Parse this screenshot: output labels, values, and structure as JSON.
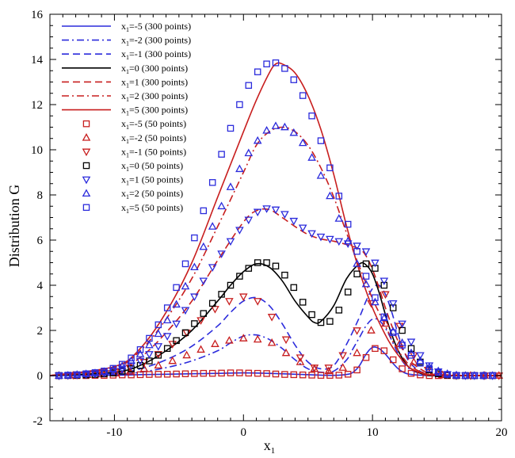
{
  "chart_data": {
    "type": "line",
    "title": "",
    "xlabel": "x",
    "xlabel_sub": "1",
    "ylabel": "Distribution G",
    "xlim": [
      -15,
      20
    ],
    "ylim": [
      -2,
      16
    ],
    "xticks": [
      -10,
      0,
      10,
      20
    ],
    "yticks": [
      -2,
      0,
      2,
      4,
      6,
      8,
      10,
      12,
      14,
      16
    ],
    "xtick_labels": [
      "-10",
      "0",
      "10",
      "20"
    ],
    "ytick_labels": [
      "-2",
      "0",
      "2",
      "4",
      "6",
      "8",
      "10",
      "12",
      "14",
      "16"
    ],
    "grid": false,
    "legend_position": "top-left",
    "series": [
      {
        "name": "x1=-5 (300 points)",
        "kind": "line",
        "color": "#2b2bdc",
        "dash": "solid",
        "x": [
          -15,
          -10,
          -8,
          -6,
          -4,
          -2,
          0,
          2,
          4,
          6,
          7,
          8,
          8.5,
          9,
          9.5,
          10,
          10.5,
          11,
          11.5,
          12,
          12.5,
          13,
          14,
          15,
          20
        ],
        "y": [
          0,
          0.02,
          0.04,
          0.06,
          0.08,
          0.1,
          0.12,
          0.1,
          0.06,
          0.02,
          0.01,
          0.05,
          0.15,
          0.45,
          0.95,
          1.25,
          1.2,
          0.95,
          0.6,
          0.3,
          0.12,
          0.05,
          0.01,
          0,
          0
        ]
      },
      {
        "name": "x1=-2 (300 points)",
        "kind": "line",
        "color": "#2b2bdc",
        "dash": "dashdot",
        "x": [
          -15,
          -10,
          -8,
          -6,
          -4,
          -2,
          -1,
          0,
          1,
          2,
          3,
          4,
          5,
          6,
          7,
          8,
          8.5,
          9,
          9.5,
          10,
          10.5,
          11,
          11.5,
          12,
          12.5,
          13,
          14,
          15,
          20
        ],
        "y": [
          0,
          0.05,
          0.15,
          0.35,
          0.65,
          1.1,
          1.45,
          1.75,
          1.8,
          1.6,
          1.2,
          0.7,
          0.3,
          0.15,
          0.2,
          0.7,
          1.2,
          1.7,
          2.2,
          2.5,
          2.45,
          2.1,
          1.55,
          0.95,
          0.5,
          0.25,
          0.05,
          0,
          0
        ]
      },
      {
        "name": "x1=-1 (300 points)",
        "kind": "line",
        "color": "#2b2bdc",
        "dash": "dash",
        "x": [
          -15,
          -10,
          -8,
          -6,
          -4,
          -2,
          -1,
          0,
          1,
          2,
          3,
          4,
          5,
          6,
          7,
          8,
          9,
          9.5,
          10,
          10.5,
          11,
          11.5,
          12,
          12.5,
          13,
          14,
          15,
          20
        ],
        "y": [
          0,
          0.1,
          0.3,
          0.7,
          1.3,
          2.2,
          2.8,
          3.3,
          3.45,
          3.1,
          2.3,
          1.35,
          0.6,
          0.3,
          0.45,
          1.4,
          2.6,
          3.3,
          3.85,
          4.0,
          3.6,
          2.8,
          1.8,
          1.0,
          0.5,
          0.1,
          0,
          0
        ]
      },
      {
        "name": "x1=0 (300 points)",
        "kind": "line",
        "color": "#000000",
        "dash": "solid",
        "x": [
          -15,
          -10,
          -8,
          -6,
          -4,
          -2,
          -1,
          0,
          1,
          2,
          3,
          4,
          5,
          5.5,
          6,
          7,
          8,
          9,
          9.5,
          10,
          10.5,
          11,
          11.5,
          12,
          12.5,
          13,
          14,
          15,
          20
        ],
        "y": [
          0,
          0.15,
          0.45,
          1.1,
          2.0,
          3.3,
          4.0,
          4.6,
          4.95,
          4.8,
          4.2,
          3.3,
          2.6,
          2.35,
          2.4,
          3.1,
          4.3,
          4.95,
          4.9,
          4.5,
          3.7,
          2.7,
          1.8,
          1.1,
          0.6,
          0.3,
          0.05,
          0,
          0
        ]
      },
      {
        "name": "x1=1 (300 points)",
        "kind": "line",
        "color": "#c81e1e",
        "dash": "dash",
        "x": [
          -15,
          -10,
          -8,
          -6,
          -4,
          -2,
          0,
          1,
          2,
          3,
          4,
          5,
          6,
          7,
          8,
          9,
          9.5,
          10,
          10.5,
          11,
          11.5,
          12,
          12.5,
          13,
          14,
          15,
          20
        ],
        "y": [
          0,
          0.25,
          0.8,
          1.9,
          3.3,
          5.1,
          6.8,
          7.3,
          7.35,
          7.0,
          6.6,
          6.25,
          6.05,
          5.95,
          5.8,
          5.6,
          5.3,
          4.7,
          3.9,
          3.0,
          2.2,
          1.5,
          1.0,
          0.6,
          0.2,
          0.05,
          0
        ]
      },
      {
        "name": "x1=2 (300 points)",
        "kind": "line",
        "color": "#c81e1e",
        "dash": "dashdot",
        "x": [
          -15,
          -10,
          -8,
          -6,
          -4,
          -2,
          0,
          1,
          2,
          3,
          4,
          5,
          6,
          7,
          8,
          9,
          10,
          10.5,
          11,
          11.5,
          12,
          12.5,
          13,
          14,
          15,
          20
        ],
        "y": [
          0,
          0.35,
          1.1,
          2.5,
          4.3,
          6.6,
          9.0,
          10.2,
          10.8,
          11.0,
          10.8,
          10.2,
          9.2,
          7.9,
          6.3,
          4.8,
          3.4,
          2.8,
          2.2,
          1.6,
          1.1,
          0.7,
          0.4,
          0.1,
          0.02,
          0
        ]
      },
      {
        "name": "x1=5 (300 points)",
        "kind": "line",
        "color": "#c81e1e",
        "dash": "solid",
        "x": [
          -15,
          -10,
          -8,
          -6,
          -4,
          -2,
          0,
          1,
          2,
          2.5,
          3,
          4,
          5,
          6,
          7,
          8,
          9,
          10,
          11,
          11.5,
          12,
          12.5,
          13,
          14,
          15,
          20
        ],
        "y": [
          0,
          0.4,
          1.2,
          2.8,
          5.0,
          7.9,
          10.8,
          12.2,
          13.4,
          13.8,
          13.8,
          13.4,
          12.4,
          10.9,
          8.9,
          6.6,
          4.6,
          3.0,
          1.8,
          1.3,
          0.9,
          0.55,
          0.3,
          0.08,
          0.02,
          0
        ]
      },
      {
        "name": "x1=-5 (50 points)",
        "kind": "marker",
        "marker": "square",
        "color": "#c81e1e",
        "x": [
          -14.3,
          -13.6,
          -12.9,
          -12.2,
          -11.5,
          -10.8,
          -10.1,
          -9.4,
          -8.7,
          -8.0,
          -7.3,
          -6.6,
          -5.9,
          -5.2,
          -4.5,
          -3.8,
          -3.1,
          -2.4,
          -1.7,
          -1.0,
          -0.3,
          0.4,
          1.1,
          1.8,
          2.5,
          3.2,
          3.9,
          4.6,
          5.3,
          6.0,
          6.7,
          7.4,
          8.1,
          8.8,
          9.5,
          10.2,
          10.9,
          11.6,
          12.3,
          13.0,
          13.7,
          14.4,
          15.1,
          15.8,
          16.5,
          17.2,
          17.9,
          18.6,
          19.3
        ],
        "y": [
          0,
          0,
          0,
          0,
          0.01,
          0.01,
          0.02,
          0.03,
          0.03,
          0.04,
          0.05,
          0.06,
          0.06,
          0.07,
          0.08,
          0.09,
          0.1,
          0.1,
          0.11,
          0.12,
          0.12,
          0.11,
          0.1,
          0.09,
          0.07,
          0.05,
          0.04,
          0.03,
          0.02,
          0.01,
          0.01,
          0.02,
          0.06,
          0.25,
          0.8,
          1.2,
          1.1,
          0.7,
          0.3,
          0.1,
          0.03,
          0,
          0,
          0,
          0,
          0,
          0,
          0,
          0
        ]
      },
      {
        "name": "x1=-2 (50 points)",
        "kind": "marker",
        "marker": "triangle-up",
        "color": "#c81e1e",
        "x": [
          -14.3,
          -13.2,
          -12.1,
          -11.0,
          -9.9,
          -8.8,
          -7.7,
          -6.6,
          -5.5,
          -4.4,
          -3.3,
          -2.2,
          -1.1,
          0,
          1.1,
          2.2,
          3.3,
          4.4,
          5.5,
          6.6,
          7.7,
          8.8,
          9.9,
          11.0,
          12.1,
          13.2,
          14.3,
          15.4,
          16.5,
          17.6,
          18.7,
          19.8
        ],
        "y": [
          0,
          0.01,
          0.03,
          0.06,
          0.1,
          0.18,
          0.3,
          0.45,
          0.65,
          0.9,
          1.15,
          1.4,
          1.55,
          1.65,
          1.6,
          1.45,
          1.0,
          0.6,
          0.3,
          0.2,
          0.35,
          1.0,
          2.0,
          2.3,
          1.4,
          0.6,
          0.15,
          0.03,
          0,
          0,
          0,
          0
        ]
      },
      {
        "name": "x1=-1 (50 points)",
        "kind": "marker",
        "marker": "triangle-down",
        "color": "#c81e1e",
        "x": [
          -14.3,
          -13.2,
          -12.1,
          -11.0,
          -9.9,
          -8.8,
          -7.7,
          -6.6,
          -5.5,
          -4.4,
          -3.3,
          -2.2,
          -1.1,
          0,
          1.1,
          2.2,
          3.3,
          4.4,
          5.5,
          6.6,
          7.7,
          8.8,
          9.9,
          11.0,
          12.1,
          13.2,
          14.3,
          15.4,
          16.5,
          17.6,
          18.7,
          19.8
        ],
        "y": [
          0,
          0.02,
          0.06,
          0.12,
          0.2,
          0.35,
          0.6,
          0.95,
          1.4,
          1.9,
          2.45,
          2.95,
          3.3,
          3.5,
          3.3,
          2.6,
          1.6,
          0.8,
          0.35,
          0.35,
          0.9,
          2.0,
          3.2,
          3.6,
          2.2,
          0.9,
          0.25,
          0.05,
          0,
          0,
          0,
          0
        ]
      },
      {
        "name": "x1=0 (50 points)",
        "kind": "marker",
        "marker": "square",
        "color": "#000000",
        "x": [
          -14.3,
          -13.6,
          -12.9,
          -12.2,
          -11.5,
          -10.8,
          -10.1,
          -9.4,
          -8.7,
          -8.0,
          -7.3,
          -6.6,
          -5.9,
          -5.2,
          -4.5,
          -3.8,
          -3.1,
          -2.4,
          -1.7,
          -1.0,
          -0.3,
          0.4,
          1.1,
          1.8,
          2.5,
          3.2,
          3.9,
          4.6,
          5.3,
          6.0,
          6.7,
          7.4,
          8.1,
          8.8,
          9.5,
          10.2,
          10.9,
          11.6,
          12.3,
          13.0,
          13.7,
          14.4,
          15.1,
          15.8,
          16.5,
          17.2,
          17.9,
          18.6,
          19.3
        ],
        "y": [
          0,
          0.01,
          0.02,
          0.03,
          0.05,
          0.08,
          0.12,
          0.2,
          0.3,
          0.45,
          0.65,
          0.9,
          1.2,
          1.55,
          1.9,
          2.3,
          2.75,
          3.2,
          3.6,
          4.0,
          4.4,
          4.75,
          5.0,
          5.0,
          4.85,
          4.45,
          3.9,
          3.25,
          2.7,
          2.35,
          2.4,
          2.9,
          3.7,
          4.5,
          4.95,
          4.75,
          4.0,
          3.0,
          2.0,
          1.2,
          0.6,
          0.25,
          0.08,
          0.02,
          0,
          0,
          0,
          0,
          0
        ]
      },
      {
        "name": "x1=1 (50 points)",
        "kind": "marker",
        "marker": "triangle-down",
        "color": "#2b2bdc",
        "x": [
          -14.3,
          -13.6,
          -12.9,
          -12.2,
          -11.5,
          -10.8,
          -10.1,
          -9.4,
          -8.7,
          -8.0,
          -7.3,
          -6.6,
          -5.9,
          -5.2,
          -4.5,
          -3.8,
          -3.1,
          -2.4,
          -1.7,
          -1.0,
          -0.3,
          0.4,
          1.1,
          1.8,
          2.5,
          3.2,
          3.9,
          4.6,
          5.3,
          6.0,
          6.7,
          7.4,
          8.1,
          8.8,
          9.5,
          10.2,
          10.9,
          11.6,
          12.3,
          13.0,
          13.7,
          14.4,
          15.1,
          15.8,
          16.5,
          17.2,
          17.9,
          18.6,
          19.3
        ],
        "y": [
          0,
          0.01,
          0.03,
          0.05,
          0.08,
          0.12,
          0.2,
          0.3,
          0.45,
          0.65,
          0.95,
          1.3,
          1.75,
          2.3,
          2.9,
          3.5,
          4.2,
          4.8,
          5.4,
          5.95,
          6.45,
          6.9,
          7.25,
          7.4,
          7.35,
          7.15,
          6.85,
          6.55,
          6.3,
          6.15,
          6.05,
          5.95,
          5.85,
          5.75,
          5.5,
          5.0,
          4.2,
          3.2,
          2.3,
          1.5,
          0.9,
          0.45,
          0.18,
          0.06,
          0.01,
          0,
          0,
          0,
          0
        ]
      },
      {
        "name": "x1=2 (50 points)",
        "kind": "marker",
        "marker": "triangle-up",
        "color": "#2b2bdc",
        "x": [
          -14.3,
          -13.6,
          -12.9,
          -12.2,
          -11.5,
          -10.8,
          -10.1,
          -9.4,
          -8.7,
          -8.0,
          -7.3,
          -6.6,
          -5.9,
          -5.2,
          -4.5,
          -3.8,
          -3.1,
          -2.4,
          -1.7,
          -1.0,
          -0.3,
          0.4,
          1.1,
          1.8,
          2.5,
          3.2,
          3.9,
          4.6,
          5.3,
          6.0,
          6.7,
          7.4,
          8.1,
          8.8,
          9.5,
          10.2,
          10.9,
          11.6,
          12.3,
          13.0,
          13.7,
          14.4,
          15.1,
          15.8,
          16.5,
          17.2,
          17.9,
          18.6,
          19.3
        ],
        "y": [
          0,
          0.01,
          0.04,
          0.07,
          0.11,
          0.17,
          0.27,
          0.42,
          0.65,
          0.95,
          1.35,
          1.85,
          2.45,
          3.15,
          3.95,
          4.8,
          5.7,
          6.6,
          7.5,
          8.35,
          9.15,
          9.85,
          10.4,
          10.85,
          11.05,
          11.0,
          10.75,
          10.3,
          9.65,
          8.85,
          7.95,
          6.95,
          5.95,
          4.95,
          4.05,
          3.25,
          2.55,
          1.95,
          1.45,
          1.0,
          0.65,
          0.38,
          0.2,
          0.08,
          0.02,
          0,
          0,
          0,
          0
        ]
      },
      {
        "name": "x1=5 (50 points)",
        "kind": "marker",
        "marker": "square",
        "color": "#2b2bdc",
        "x": [
          -14.3,
          -13.6,
          -12.9,
          -12.2,
          -11.5,
          -10.8,
          -10.1,
          -9.4,
          -8.7,
          -8.0,
          -7.3,
          -6.6,
          -5.9,
          -5.2,
          -4.5,
          -3.8,
          -3.1,
          -2.4,
          -1.7,
          -1.0,
          -0.3,
          0.4,
          1.1,
          1.8,
          2.5,
          3.2,
          3.9,
          4.6,
          5.3,
          6.0,
          6.7,
          7.4,
          8.1,
          8.8,
          9.5,
          10.2,
          10.9,
          11.6,
          12.3,
          13.0,
          13.7,
          14.4,
          15.1,
          15.8,
          16.5,
          17.2,
          17.9,
          18.6,
          19.3
        ],
        "y": [
          0,
          0.02,
          0.04,
          0.08,
          0.13,
          0.2,
          0.32,
          0.5,
          0.78,
          1.15,
          1.65,
          2.25,
          3.0,
          3.9,
          4.95,
          6.1,
          7.3,
          8.55,
          9.8,
          10.95,
          12.0,
          12.85,
          13.45,
          13.8,
          13.85,
          13.6,
          13.1,
          12.4,
          11.5,
          10.4,
          9.2,
          7.95,
          6.7,
          5.5,
          4.4,
          3.45,
          2.6,
          1.9,
          1.35,
          0.9,
          0.55,
          0.3,
          0.14,
          0.05,
          0.01,
          0,
          0,
          0,
          0
        ]
      }
    ]
  }
}
